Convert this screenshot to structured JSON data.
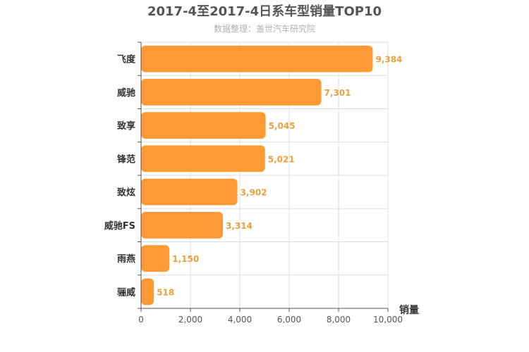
{
  "chart_data": {
    "type": "bar",
    "orientation": "horizontal",
    "title": "2017-4至2017-4日系车型销量TOP10",
    "subtitle": "数据整理：盖世汽车研究院",
    "xlabel": "销量",
    "ylabel": "",
    "categories": [
      "飞度",
      "威驰",
      "致享",
      "锋范",
      "致炫",
      "威驰FS",
      "雨燕",
      "骊威"
    ],
    "values": [
      9384,
      7301,
      5045,
      5021,
      3902,
      3314,
      1150,
      518
    ],
    "value_labels": [
      "9,384",
      "7,301",
      "5,045",
      "5,021",
      "3,902",
      "3,314",
      "1,150",
      "518"
    ],
    "xlim": [
      0,
      10000
    ],
    "x_ticks": [
      0,
      2000,
      4000,
      6000,
      8000,
      10000
    ],
    "x_tick_labels": [
      "0",
      "2,000",
      "4,000",
      "6,000",
      "8,000",
      "10,000"
    ],
    "grid": true,
    "colors": {
      "bar": "#ff9933",
      "value_label": "#e8a040"
    }
  }
}
